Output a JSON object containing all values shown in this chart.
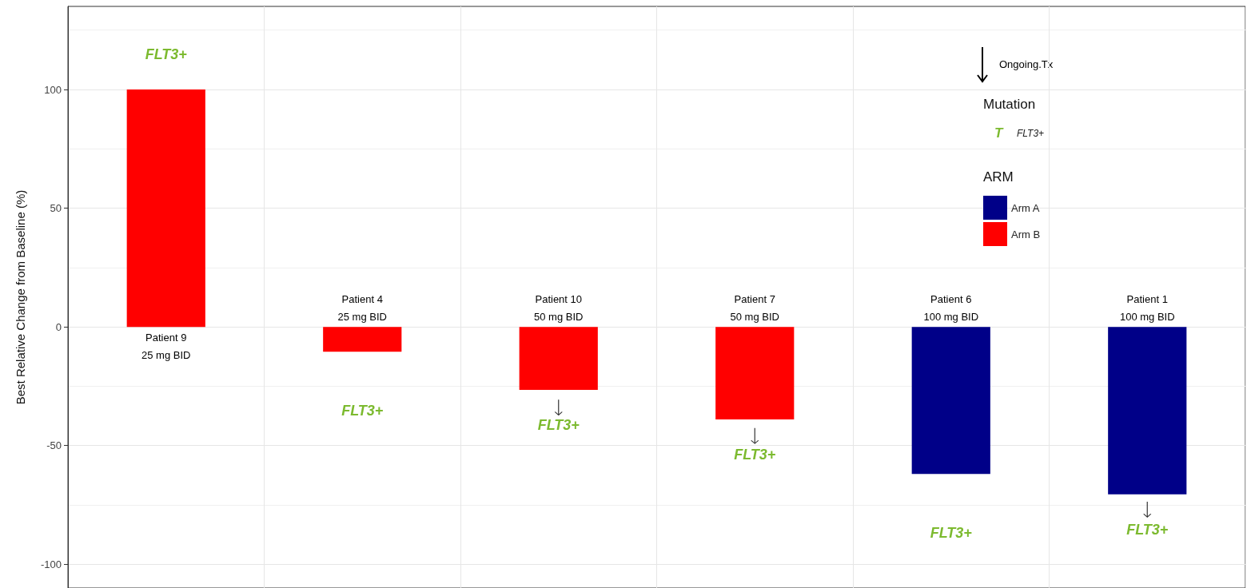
{
  "chart_data": {
    "type": "bar",
    "ylabel": "Best Relative Change from Baseline (%)",
    "legend_title": "ARM",
    "annotations": [
      "Mutation",
      "T",
      "FLT3+",
      "FLT3+",
      "FLT3+",
      "FLT3+",
      "FLT3+",
      "FLT3+",
      "FLT3+"
    ],
    "categories": [
      null,
      null,
      null,
      null,
      null,
      null
    ],
    "series": [
      {
        "name": "Arm A",
        "color": "#000088",
        "values": [
          null,
          null,
          null,
          null,
          -62,
          -70.5
        ],
        "value_labels": [
          null,
          null,
          null,
          null,
          "Patient 6\n100 mg BID",
          "Patient 1\n100 mg BID"
        ]
      },
      {
        "name": "Arm B",
        "color": "#ff0000",
        "values": [
          100,
          -10.5,
          -26.5,
          -39,
          null,
          null
        ],
        "value_labels": [
          "Patient 9\n25 mg BID",
          "Patient 4\n25 mg BID",
          "Patient 10\n50 mg BID",
          "Patient 7\n50 mg BID",
          null,
          null
        ]
      },
      {
        "name": "Ongoing.Tx",
        "type": "scatter",
        "color": "#000000",
        "values": [
          null,
          null,
          -34,
          -46,
          null,
          -77
        ]
      }
    ],
    "ylim": [
      -110,
      135
    ],
    "yticks": [
      -100,
      -50,
      0,
      50,
      100
    ],
    "grid": true,
    "legend": "top right",
    "tick_labels": "y"
  }
}
